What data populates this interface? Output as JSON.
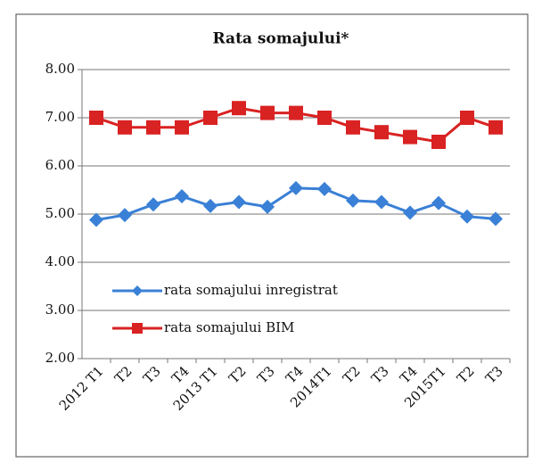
{
  "chart_data": {
    "type": "line",
    "title": "Rata somajului*",
    "categories": [
      "2012 T1",
      "T2",
      "T3",
      "T4",
      "2013 T1",
      "T2",
      "T3",
      "T4",
      "2014T1",
      "T2",
      "T3",
      "T4",
      "2015T1",
      "T2",
      "T3"
    ],
    "series": [
      {
        "name": "rata somajului inregistrat",
        "color": "#3a80d6",
        "marker": "diamond",
        "values": [
          4.88,
          4.98,
          5.2,
          5.37,
          5.17,
          5.25,
          5.15,
          5.54,
          5.52,
          5.28,
          5.25,
          5.03,
          5.23,
          4.95,
          4.9
        ]
      },
      {
        "name": "rata somajului BIM",
        "color": "#d92222",
        "marker": "square",
        "values": [
          7.0,
          6.8,
          6.8,
          6.8,
          7.0,
          7.2,
          7.1,
          7.1,
          7.0,
          6.8,
          6.7,
          6.6,
          6.5,
          7.0,
          6.8
        ]
      }
    ],
    "ylim": [
      2,
      8
    ],
    "yticks": [
      {
        "value": 2,
        "label": "2.00"
      },
      {
        "value": 3,
        "label": "3.00"
      },
      {
        "value": 4,
        "label": "4.00"
      },
      {
        "value": 5,
        "label": "5.00"
      },
      {
        "value": 6,
        "label": "6.00"
      },
      {
        "value": 7,
        "label": "7.00"
      },
      {
        "value": 8,
        "label": "8.00"
      }
    ],
    "grid": true
  }
}
